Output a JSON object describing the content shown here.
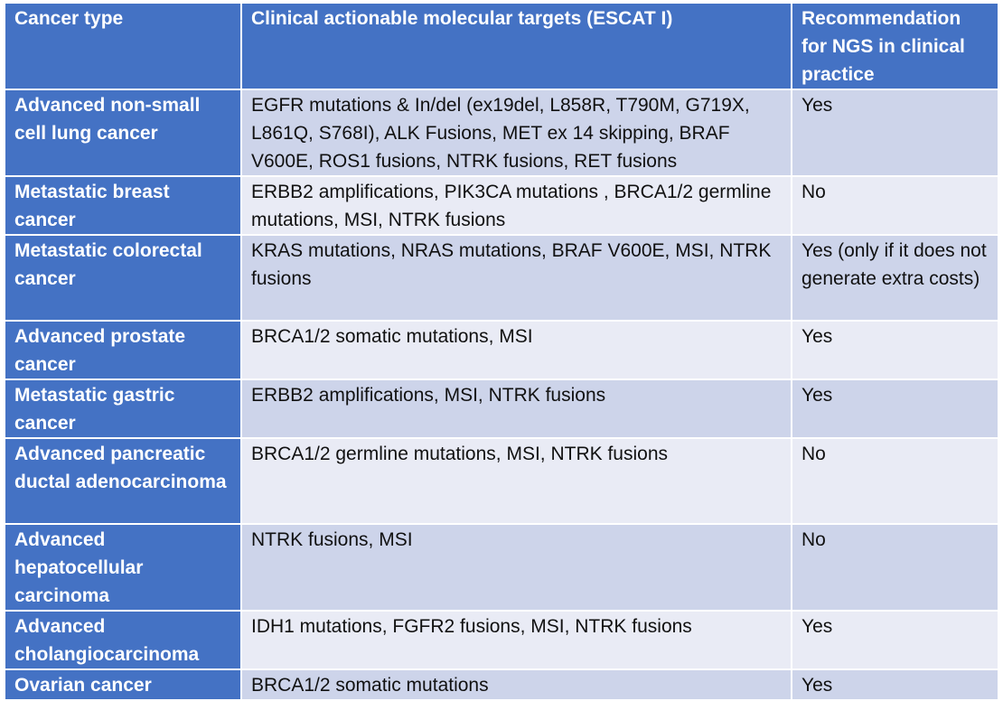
{
  "table": {
    "headers": [
      "Cancer type",
      "Clinical actionable molecular targets (ESCAT I)",
      "Recommendation for NGS in clinical practice"
    ],
    "rows": [
      {
        "cancer_type": "Advanced non-small cell lung cancer",
        "targets": "EGFR mutations & In/del (ex19del, L858R, T790M, G719X, L861Q, S768I), ALK Fusions, MET ex 14 skipping, BRAF V600E, ROS1 fusions, NTRK fusions, RET fusions",
        "recommendation": "Yes"
      },
      {
        "cancer_type": "Metastatic breast cancer",
        "targets": "ERBB2 amplifications, PIK3CA mutations , BRCA1/2 germline mutations, MSI, NTRK fusions",
        "recommendation": "No"
      },
      {
        "cancer_type": "Metastatic colorectal cancer",
        "targets": "KRAS mutations, NRAS mutations, BRAF V600E, MSI, NTRK fusions",
        "recommendation": "Yes (only if it does not generate extra costs)"
      },
      {
        "cancer_type": "Advanced prostate cancer",
        "targets": "BRCA1/2 somatic mutations, MSI",
        "recommendation": "Yes"
      },
      {
        "cancer_type": "Metastatic gastric cancer",
        "targets": "ERBB2 amplifications, MSI, NTRK fusions",
        "recommendation": "Yes"
      },
      {
        "cancer_type": "Advanced pancreatic ductal adenocarcinoma",
        "targets": "BRCA1/2 germline mutations, MSI, NTRK fusions",
        "recommendation": "No"
      },
      {
        "cancer_type": "Advanced hepatocellular carcinoma",
        "targets": "NTRK fusions, MSI",
        "recommendation": "No"
      },
      {
        "cancer_type": "Advanced cholangiocarcinoma",
        "targets": "IDH1 mutations, FGFR2 fusions, MSI, NTRK fusions",
        "recommendation": "Yes"
      },
      {
        "cancer_type": "Ovarian cancer",
        "targets": "BRCA1/2 somatic mutations",
        "recommendation": "Yes"
      }
    ]
  }
}
